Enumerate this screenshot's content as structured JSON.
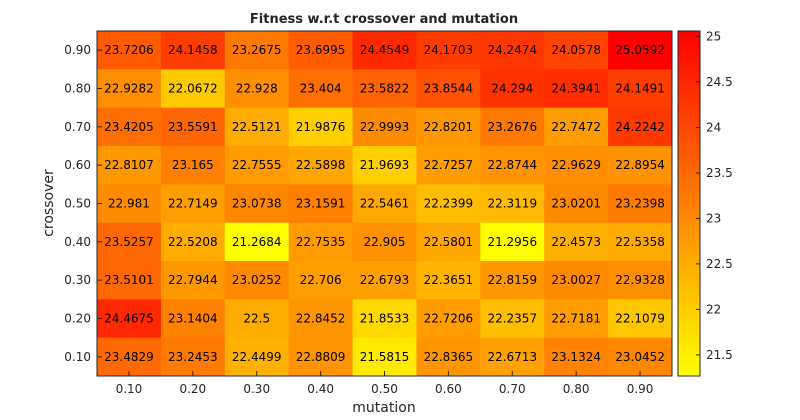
{
  "chart_data": {
    "type": "heatmap",
    "title": "Fitness w.r.t crossover and mutation",
    "xlabel": "mutation",
    "ylabel": "crossover",
    "x_categories": [
      "0.10",
      "0.20",
      "0.30",
      "0.40",
      "0.50",
      "0.60",
      "0.70",
      "0.80",
      "0.90"
    ],
    "y_categories": [
      "0.90",
      "0.80",
      "0.70",
      "0.60",
      "0.50",
      "0.40",
      "0.30",
      "0.20",
      "0.10"
    ],
    "values": [
      [
        "23.7206",
        "24.1458",
        "23.2675",
        "23.6995",
        "24.4549",
        "24.1703",
        "24.2474",
        "24.0578",
        "25.0592"
      ],
      [
        "22.9282",
        "22.0672",
        "22.928",
        "23.404",
        "23.5822",
        "23.8544",
        "24.294",
        "24.3941",
        "24.1491"
      ],
      [
        "23.4205",
        "23.5591",
        "22.5121",
        "21.9876",
        "22.9993",
        "22.8201",
        "23.2676",
        "22.7472",
        "24.2242"
      ],
      [
        "22.8107",
        "23.165",
        "22.7555",
        "22.5898",
        "21.9693",
        "22.7257",
        "22.8744",
        "22.9629",
        "22.8954"
      ],
      [
        "22.981",
        "22.7149",
        "23.0738",
        "23.1591",
        "22.5461",
        "22.2399",
        "22.3119",
        "23.0201",
        "23.2398"
      ],
      [
        "23.5257",
        "22.5208",
        "21.2684",
        "22.7535",
        "22.905",
        "22.5801",
        "21.2956",
        "22.4573",
        "22.5358"
      ],
      [
        "23.5101",
        "22.7944",
        "23.0252",
        "22.706",
        "22.6793",
        "22.3651",
        "22.8159",
        "23.0027",
        "22.9328"
      ],
      [
        "24.4675",
        "23.1404",
        "22.5",
        "22.8452",
        "21.8533",
        "22.7206",
        "22.2357",
        "22.7181",
        "22.1079"
      ],
      [
        "23.4829",
        "23.2453",
        "22.4499",
        "22.8809",
        "21.5815",
        "22.8365",
        "22.6713",
        "23.1324",
        "23.0452"
      ]
    ],
    "colorbar": {
      "ticks": [
        "21.5",
        "22",
        "22.5",
        "23",
        "23.5",
        "24",
        "24.5",
        "25"
      ],
      "min": 21.2684,
      "max": 25.0592,
      "colormap": "autumn-reversed"
    },
    "colors": {
      "low": "#ffff00",
      "high": "#ff0000"
    },
    "grid": false,
    "legend": "colorbar-right"
  }
}
